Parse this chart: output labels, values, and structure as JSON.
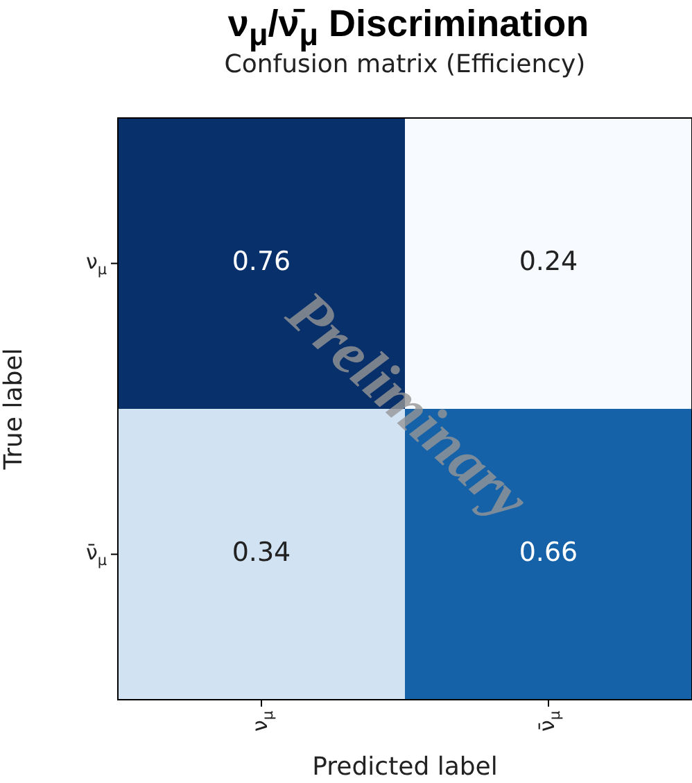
{
  "chart_data": {
    "type": "heatmap",
    "title": "ν$_{μ}$/ν̄$_{μ}$ Discrimination",
    "subtitle": "Confusion matrix (Efficiency)",
    "xlabel": "Predicted label",
    "ylabel": "True label",
    "categories": [
      "ν$_{μ}$",
      "ν̄$_{μ}$"
    ],
    "y_categories": [
      "ν$_{μ}$",
      "ν̄$_{μ}$"
    ],
    "cells": [
      [
        0.76,
        0.24
      ],
      [
        0.34,
        0.66
      ]
    ],
    "data_labels": true,
    "annotations": [
      "Preliminary"
    ]
  }
}
